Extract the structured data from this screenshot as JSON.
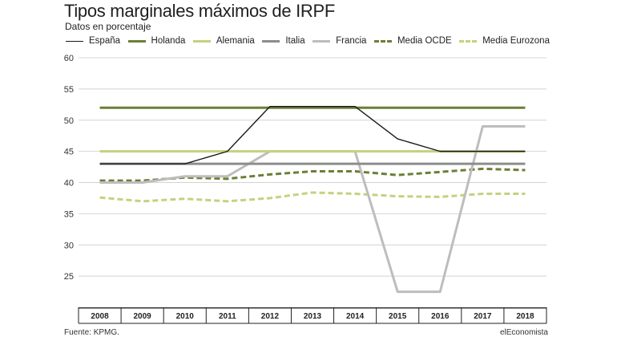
{
  "chart_data": {
    "type": "line",
    "title": "Tipos marginales máximos de IRPF",
    "subtitle": "Datos en porcentaje",
    "x": [
      "2008",
      "2009",
      "2010",
      "2011",
      "2012",
      "2013",
      "2014",
      "2015",
      "2016",
      "2017",
      "2018"
    ],
    "ylim": [
      20,
      60
    ],
    "yticks": [
      25,
      30,
      35,
      40,
      45,
      50,
      55,
      60
    ],
    "grid": "horizontal",
    "legend_position": "top",
    "series": [
      {
        "name": "España",
        "color": "#1a1a1a",
        "dash": false,
        "width": 1.4,
        "values": [
          43,
          43,
          43,
          45,
          52.2,
          52.2,
          52.2,
          47,
          45,
          45,
          45
        ]
      },
      {
        "name": "Holanda",
        "color": "#6b7f37",
        "dash": false,
        "width": 3,
        "values": [
          52,
          52,
          52,
          52,
          52,
          52,
          52,
          52,
          52,
          52,
          52
        ]
      },
      {
        "name": "Alemania",
        "color": "#c3d27e",
        "dash": false,
        "width": 3,
        "values": [
          45,
          45,
          45,
          45,
          45,
          45,
          45,
          45,
          45,
          45,
          45
        ]
      },
      {
        "name": "Italia",
        "color": "#8c8c8c",
        "dash": false,
        "width": 3,
        "values": [
          43,
          43,
          43,
          43,
          43,
          43,
          43,
          43,
          43,
          43,
          43
        ]
      },
      {
        "name": "Francia",
        "color": "#bdbdbd",
        "dash": false,
        "width": 3,
        "values": [
          40,
          40,
          41,
          41,
          45,
          45,
          45,
          22.5,
          22.5,
          49,
          49
        ]
      },
      {
        "name": "Media OCDE",
        "color": "#6b7f37",
        "dash": true,
        "width": 3,
        "values": [
          40.3,
          40.3,
          40.8,
          40.6,
          41.3,
          41.8,
          41.8,
          41.2,
          41.7,
          42.2,
          42
        ]
      },
      {
        "name": "Media Eurozona",
        "color": "#c3d27e",
        "dash": true,
        "width": 3,
        "values": [
          37.6,
          37,
          37.4,
          37,
          37.5,
          38.4,
          38.2,
          37.8,
          37.7,
          38.2,
          38.2
        ]
      }
    ]
  },
  "footer": {
    "source": "Fuente: KPMG.",
    "brand": "elEconomista"
  }
}
